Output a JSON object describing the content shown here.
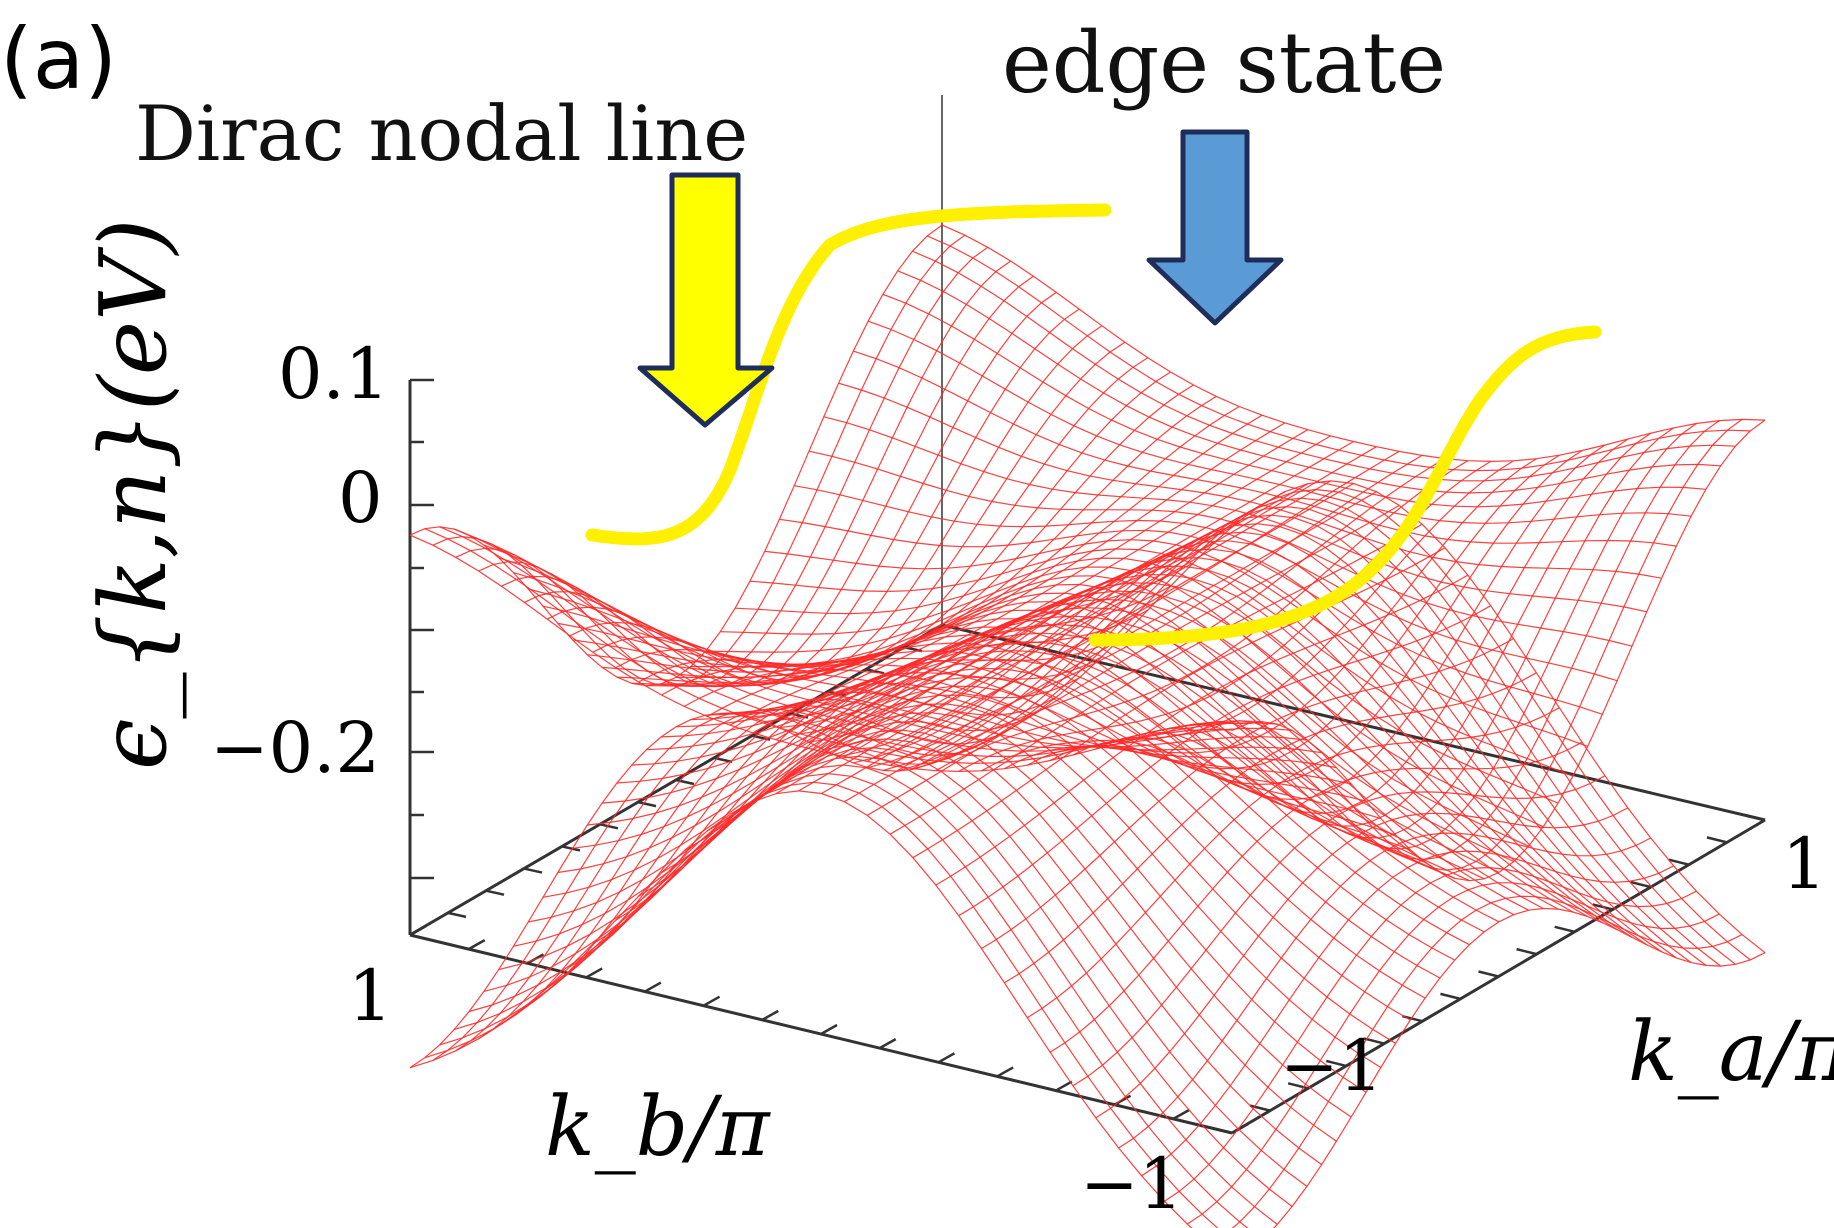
{
  "figure": {
    "panel_label": "(a)",
    "annotations": {
      "dirac": "Dirac nodal line",
      "edge": "edge state"
    },
    "arrow_colors": {
      "dirac": "#ffff00",
      "edge": "#5b9bd5",
      "outline": "#1f2d5a"
    }
  },
  "chart_data": {
    "type": "surface",
    "x_axis": {
      "label": "k_a/π",
      "ticks": [
        "−1",
        "1"
      ],
      "range": [
        -1,
        1
      ]
    },
    "y_axis": {
      "label": "k_b/π",
      "ticks": [
        "1",
        "−1"
      ],
      "range": [
        1,
        -1
      ]
    },
    "z_axis": {
      "label": "ϵ_{k,n}(eV)",
      "ticks": [
        "0.1",
        "0",
        "−0.2"
      ],
      "range": [
        -0.35,
        0.1
      ]
    },
    "mesh_color": "#ff0000",
    "nodal_line_color": "#ffff00",
    "surface": {
      "description_note": "",
      "bands": 2
    }
  }
}
